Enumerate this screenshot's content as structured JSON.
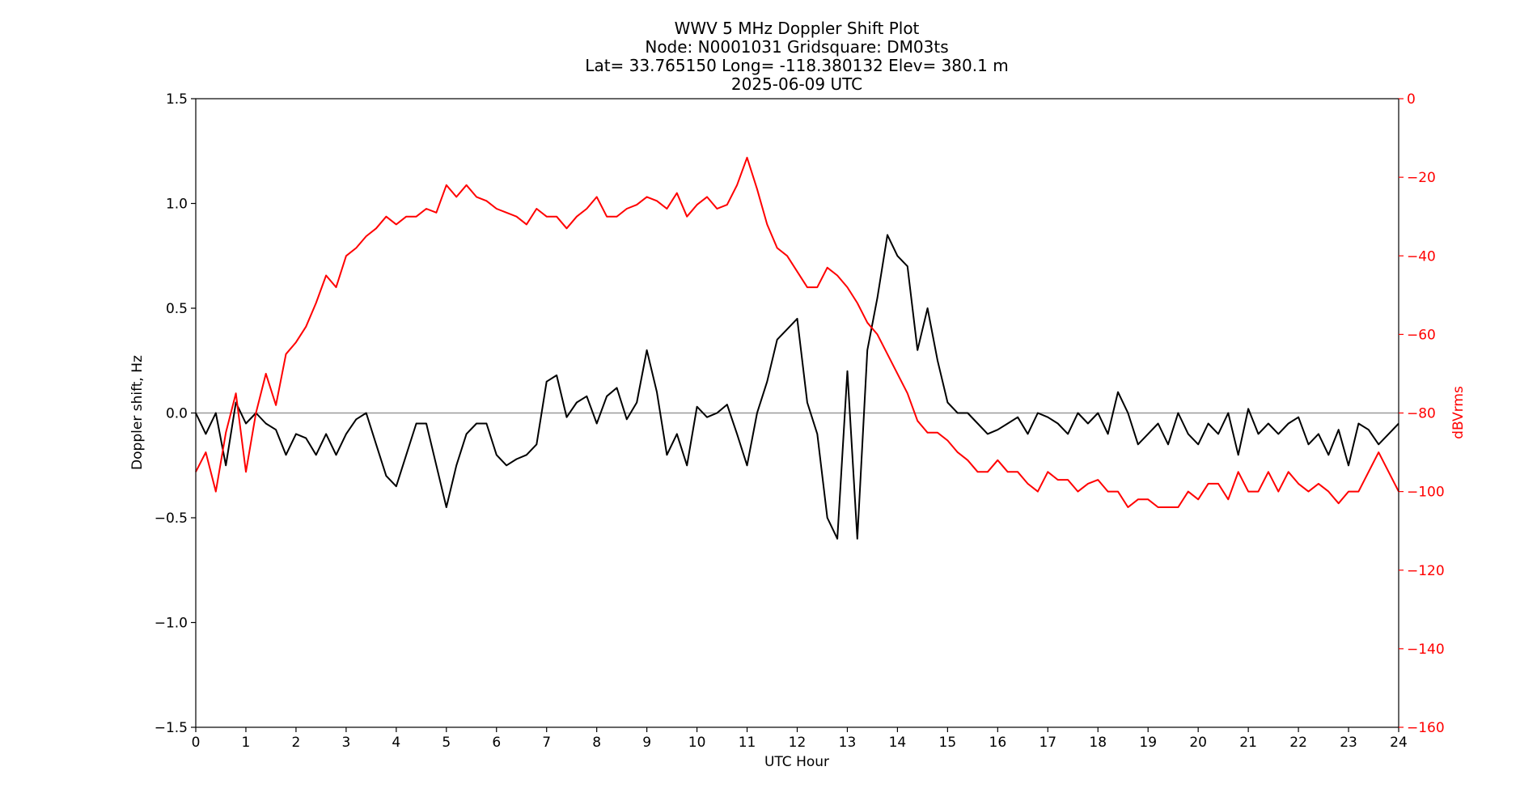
{
  "chart_data": {
    "type": "line",
    "title_lines": [
      "WWV 5 MHz Doppler Shift Plot",
      "Node:  N0001031     Gridsquare:  DM03ts",
      "Lat= 33.765150    Long= -118.380132    Elev= 380.1 m",
      "2025-06-09  UTC"
    ],
    "xlabel": "UTC Hour",
    "ylabel_left": "Doppler shift, Hz",
    "ylabel_right": "dBVrms",
    "xlim": [
      0,
      24
    ],
    "ylim_left": [
      -1.5,
      1.5
    ],
    "ylim_right": [
      -160,
      0
    ],
    "x_ticks": [
      "0",
      "1",
      "2",
      "3",
      "4",
      "5",
      "6",
      "7",
      "8",
      "9",
      "10",
      "11",
      "12",
      "13",
      "14",
      "15",
      "16",
      "17",
      "18",
      "19",
      "20",
      "21",
      "22",
      "23",
      "24"
    ],
    "y_ticks_left": [
      "1.5",
      "1.0",
      "0.5",
      "0.0",
      "−0.5",
      "−1.0",
      "−1.5"
    ],
    "y_ticks_right": [
      "0",
      "−20",
      "−40",
      "−60",
      "−80",
      "−100",
      "−120",
      "−140",
      "−160"
    ],
    "zero_line": 0,
    "colors": {
      "doppler": "#000000",
      "power": "#ff0000",
      "zero_line": "#999999",
      "right_axis": "#ff0000"
    },
    "series": [
      {
        "axis": "left",
        "x": [
          0,
          0.2,
          0.4,
          0.6,
          0.8,
          1.0,
          1.2,
          1.4,
          1.6,
          1.8,
          2.0,
          2.2,
          2.4,
          2.6,
          2.8,
          3.0,
          3.2,
          3.4,
          3.6,
          3.8,
          4.0,
          4.2,
          4.4,
          4.6,
          4.8,
          5.0,
          5.2,
          5.4,
          5.6,
          5.8,
          6.0,
          6.2,
          6.4,
          6.6,
          6.8,
          7.0,
          7.2,
          7.4,
          7.6,
          7.8,
          8.0,
          8.2,
          8.4,
          8.6,
          8.8,
          9.0,
          9.2,
          9.4,
          9.6,
          9.8,
          10.0,
          10.2,
          10.4,
          10.6,
          10.8,
          11.0,
          11.2,
          11.4,
          11.6,
          11.8,
          12.0,
          12.2,
          12.4,
          12.6,
          12.8,
          13.0,
          13.2,
          13.4,
          13.6,
          13.8,
          14.0,
          14.2,
          14.4,
          14.6,
          14.8,
          15.0,
          15.2,
          15.4,
          15.6,
          15.8,
          16.0,
          16.2,
          16.4,
          16.6,
          16.8,
          17.0,
          17.2,
          17.4,
          17.6,
          17.8,
          18.0,
          18.2,
          18.4,
          18.6,
          18.8,
          19.0,
          19.2,
          19.4,
          19.6,
          19.8,
          20.0,
          20.2,
          20.4,
          20.6,
          20.8,
          21.0,
          21.2,
          21.4,
          21.6,
          21.8,
          22.0,
          22.2,
          22.4,
          22.6,
          22.8,
          23.0,
          23.2,
          23.4,
          23.6,
          23.8,
          24.0
        ],
        "values": [
          0.0,
          -0.1,
          0.0,
          -0.25,
          0.05,
          -0.05,
          0.0,
          -0.05,
          -0.08,
          -0.2,
          -0.1,
          -0.12,
          -0.2,
          -0.1,
          -0.2,
          -0.1,
          -0.03,
          0.0,
          -0.15,
          -0.3,
          -0.35,
          -0.2,
          -0.05,
          -0.05,
          -0.25,
          -0.45,
          -0.25,
          -0.1,
          -0.05,
          -0.05,
          -0.2,
          -0.25,
          -0.22,
          -0.2,
          -0.15,
          0.15,
          0.18,
          -0.02,
          0.05,
          0.08,
          -0.05,
          0.08,
          0.12,
          -0.03,
          0.05,
          0.3,
          0.1,
          -0.2,
          -0.1,
          -0.25,
          0.03,
          -0.02,
          0.0,
          0.04,
          -0.1,
          -0.25,
          0.0,
          0.15,
          0.35,
          0.4,
          0.45,
          0.05,
          -0.1,
          -0.5,
          -0.6,
          0.2,
          -0.6,
          0.3,
          0.55,
          0.85,
          0.75,
          0.7,
          0.3,
          0.5,
          0.25,
          0.05,
          0.0,
          0.0,
          -0.05,
          -0.1,
          -0.08,
          -0.05,
          -0.02,
          -0.1,
          0.0,
          -0.02,
          -0.05,
          -0.1,
          0.0,
          -0.05,
          0.0,
          -0.1,
          0.1,
          0.0,
          -0.15,
          -0.1,
          -0.05,
          -0.15,
          0.0,
          -0.1,
          -0.15,
          -0.05,
          -0.1,
          0.0,
          -0.2,
          0.02,
          -0.1,
          -0.05,
          -0.1,
          -0.05,
          -0.02,
          -0.15,
          -0.1,
          -0.2,
          -0.08,
          -0.25,
          -0.05,
          -0.08,
          -0.15,
          -0.1,
          -0.05
        ],
        "name": ""
      },
      {
        "axis": "right",
        "x": [
          0,
          0.2,
          0.4,
          0.6,
          0.8,
          1.0,
          1.2,
          1.4,
          1.6,
          1.8,
          2.0,
          2.2,
          2.4,
          2.6,
          2.8,
          3.0,
          3.2,
          3.4,
          3.6,
          3.8,
          4.0,
          4.2,
          4.4,
          4.6,
          4.8,
          5.0,
          5.2,
          5.4,
          5.6,
          5.8,
          6.0,
          6.2,
          6.4,
          6.6,
          6.8,
          7.0,
          7.2,
          7.4,
          7.6,
          7.8,
          8.0,
          8.2,
          8.4,
          8.6,
          8.8,
          9.0,
          9.2,
          9.4,
          9.6,
          9.8,
          10.0,
          10.2,
          10.4,
          10.6,
          10.8,
          11.0,
          11.2,
          11.4,
          11.6,
          11.8,
          12.0,
          12.2,
          12.4,
          12.6,
          12.8,
          13.0,
          13.2,
          13.4,
          13.6,
          13.8,
          14.0,
          14.2,
          14.4,
          14.6,
          14.8,
          15.0,
          15.2,
          15.4,
          15.6,
          15.8,
          16.0,
          16.2,
          16.4,
          16.6,
          16.8,
          17.0,
          17.2,
          17.4,
          17.6,
          17.8,
          18.0,
          18.2,
          18.4,
          18.6,
          18.8,
          19.0,
          19.2,
          19.4,
          19.6,
          19.8,
          20.0,
          20.2,
          20.4,
          20.6,
          20.8,
          21.0,
          21.2,
          21.4,
          21.6,
          21.8,
          22.0,
          22.2,
          22.4,
          22.6,
          22.8,
          23.0,
          23.2,
          23.4,
          23.6,
          23.8,
          24.0
        ],
        "values": [
          -95,
          -90,
          -100,
          -85,
          -75,
          -95,
          -80,
          -70,
          -78,
          -65,
          -62,
          -58,
          -52,
          -45,
          -48,
          -40,
          -38,
          -35,
          -33,
          -30,
          -32,
          -30,
          -30,
          -28,
          -29,
          -22,
          -25,
          -22,
          -25,
          -26,
          -28,
          -29,
          -30,
          -32,
          -28,
          -30,
          -30,
          -33,
          -30,
          -28,
          -25,
          -30,
          -30,
          -28,
          -27,
          -25,
          -26,
          -28,
          -24,
          -30,
          -27,
          -25,
          -28,
          -27,
          -22,
          -15,
          -23,
          -32,
          -38,
          -40,
          -44,
          -48,
          -48,
          -43,
          -45,
          -48,
          -52,
          -57,
          -60,
          -65,
          -70,
          -75,
          -82,
          -85,
          -85,
          -87,
          -90,
          -92,
          -95,
          -95,
          -92,
          -95,
          -95,
          -98,
          -100,
          -95,
          -97,
          -97,
          -100,
          -98,
          -97,
          -100,
          -100,
          -104,
          -102,
          -102,
          -104,
          -104,
          -104,
          -100,
          -102,
          -98,
          -98,
          -102,
          -95,
          -100,
          -100,
          -95,
          -100,
          -95,
          -98,
          -100,
          -98,
          -100,
          -103,
          -100,
          -100,
          -95,
          -90,
          -95,
          -100
        ],
        "name": ""
      }
    ]
  }
}
